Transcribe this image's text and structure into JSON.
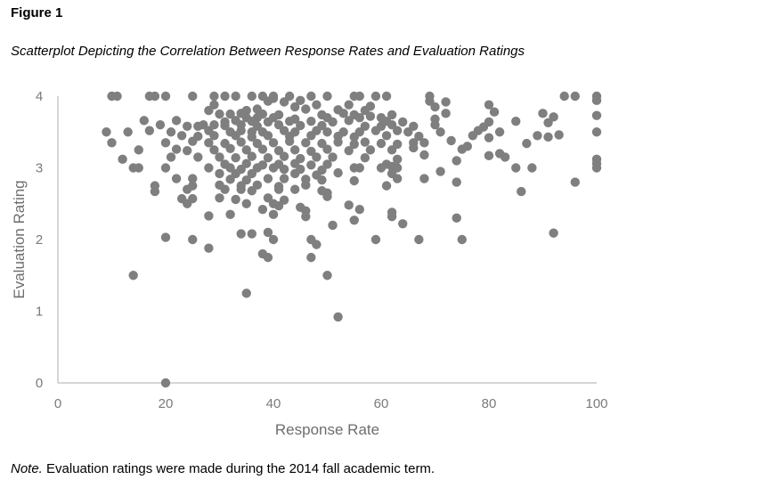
{
  "figure": {
    "label": "Figure 1",
    "title": "Scatterplot Depicting the Correlation Between Response Rates and Evaluation Ratings",
    "note_lead": "Note.",
    "note_text": " Evaluation ratings were made during the 2014 fall academic term."
  },
  "chart_data": {
    "type": "scatter",
    "title": "",
    "xlabel": "Response Rate",
    "ylabel": "Evaluation Rating",
    "xlim": [
      0,
      100
    ],
    "ylim": [
      0,
      4
    ],
    "xticks": [
      0,
      20,
      40,
      60,
      80,
      100
    ],
    "yticks": [
      0,
      1,
      2,
      3,
      4
    ],
    "grid": false,
    "legend": "none",
    "point_color": "#7f7f7f",
    "axis_color": "#c8c8c8",
    "points": [
      [
        10,
        4
      ],
      [
        11,
        4
      ],
      [
        17,
        4
      ],
      [
        18,
        4
      ],
      [
        20,
        4
      ],
      [
        25,
        4
      ],
      [
        29,
        4
      ],
      [
        31,
        4
      ],
      [
        33,
        4
      ],
      [
        36,
        4
      ],
      [
        38,
        4
      ],
      [
        40,
        4
      ],
      [
        43,
        4
      ],
      [
        47,
        4
      ],
      [
        50,
        4
      ],
      [
        55,
        4
      ],
      [
        56,
        4
      ],
      [
        59,
        4
      ],
      [
        61,
        4
      ],
      [
        69,
        4
      ],
      [
        94,
        4
      ],
      [
        96,
        4
      ],
      [
        100,
        4
      ],
      [
        40,
        3.97
      ],
      [
        39,
        3.93
      ],
      [
        42,
        3.92
      ],
      [
        45,
        3.94
      ],
      [
        69,
        3.93
      ],
      [
        72,
        3.92
      ],
      [
        100,
        3.94
      ],
      [
        29,
        3.88
      ],
      [
        48,
        3.88
      ],
      [
        54,
        3.88
      ],
      [
        80,
        3.88
      ],
      [
        44,
        3.85
      ],
      [
        58,
        3.86
      ],
      [
        70,
        3.85
      ],
      [
        28,
        3.8
      ],
      [
        35,
        3.8
      ],
      [
        37,
        3.82
      ],
      [
        46,
        3.82
      ],
      [
        52,
        3.81
      ],
      [
        57,
        3.8
      ],
      [
        81,
        3.78
      ],
      [
        30,
        3.75
      ],
      [
        32,
        3.75
      ],
      [
        34,
        3.76
      ],
      [
        38,
        3.75
      ],
      [
        41,
        3.74
      ],
      [
        49,
        3.74
      ],
      [
        53,
        3.76
      ],
      [
        55,
        3.74
      ],
      [
        62,
        3.74
      ],
      [
        72,
        3.76
      ],
      [
        90,
        3.76
      ],
      [
        100,
        3.73
      ],
      [
        35,
        3.7
      ],
      [
        37,
        3.7
      ],
      [
        40,
        3.7
      ],
      [
        44,
        3.68
      ],
      [
        50,
        3.7
      ],
      [
        56,
        3.7
      ],
      [
        58,
        3.72
      ],
      [
        60,
        3.7
      ],
      [
        70,
        3.68
      ],
      [
        92,
        3.71
      ],
      [
        16,
        3.66
      ],
      [
        22,
        3.66
      ],
      [
        31,
        3.64
      ],
      [
        33,
        3.66
      ],
      [
        36,
        3.65
      ],
      [
        39,
        3.64
      ],
      [
        43,
        3.65
      ],
      [
        47,
        3.65
      ],
      [
        51,
        3.64
      ],
      [
        54,
        3.66
      ],
      [
        61,
        3.65
      ],
      [
        64,
        3.64
      ],
      [
        80,
        3.64
      ],
      [
        85,
        3.65
      ],
      [
        91,
        3.63
      ],
      [
        19,
        3.6
      ],
      [
        24,
        3.58
      ],
      [
        26,
        3.58
      ],
      [
        27,
        3.6
      ],
      [
        29,
        3.6
      ],
      [
        31,
        3.59
      ],
      [
        34,
        3.6
      ],
      [
        37,
        3.58
      ],
      [
        41,
        3.6
      ],
      [
        45,
        3.59
      ],
      [
        49,
        3.59
      ],
      [
        57,
        3.58
      ],
      [
        60,
        3.58
      ],
      [
        62,
        3.6
      ],
      [
        66,
        3.58
      ],
      [
        70,
        3.6
      ],
      [
        79,
        3.57
      ],
      [
        9,
        3.5
      ],
      [
        13,
        3.5
      ],
      [
        17,
        3.52
      ],
      [
        21,
        3.5
      ],
      [
        28,
        3.52
      ],
      [
        32,
        3.5
      ],
      [
        34,
        3.52
      ],
      [
        36,
        3.5
      ],
      [
        38,
        3.5
      ],
      [
        42,
        3.52
      ],
      [
        44,
        3.5
      ],
      [
        48,
        3.52
      ],
      [
        50,
        3.5
      ],
      [
        53,
        3.5
      ],
      [
        56,
        3.5
      ],
      [
        59,
        3.52
      ],
      [
        63,
        3.52
      ],
      [
        65,
        3.5
      ],
      [
        71,
        3.5
      ],
      [
        78,
        3.52
      ],
      [
        82,
        3.5
      ],
      [
        93,
        3.46
      ],
      [
        100,
        3.5
      ],
      [
        23,
        3.45
      ],
      [
        26,
        3.44
      ],
      [
        29,
        3.45
      ],
      [
        33,
        3.45
      ],
      [
        36,
        3.43
      ],
      [
        39,
        3.45
      ],
      [
        43,
        3.44
      ],
      [
        47,
        3.45
      ],
      [
        52,
        3.44
      ],
      [
        55,
        3.43
      ],
      [
        61,
        3.45
      ],
      [
        67,
        3.44
      ],
      [
        77,
        3.45
      ],
      [
        80,
        3.42
      ],
      [
        89,
        3.45
      ],
      [
        91,
        3.43
      ],
      [
        10,
        3.35
      ],
      [
        20,
        3.35
      ],
      [
        25,
        3.37
      ],
      [
        28,
        3.35
      ],
      [
        31,
        3.34
      ],
      [
        34,
        3.36
      ],
      [
        37,
        3.34
      ],
      [
        40,
        3.35
      ],
      [
        43,
        3.37
      ],
      [
        46,
        3.35
      ],
      [
        49,
        3.34
      ],
      [
        52,
        3.36
      ],
      [
        55,
        3.33
      ],
      [
        57,
        3.36
      ],
      [
        60,
        3.34
      ],
      [
        63,
        3.33
      ],
      [
        66,
        3.35
      ],
      [
        68,
        3.35
      ],
      [
        73,
        3.38
      ],
      [
        76,
        3.3
      ],
      [
        87,
        3.34
      ],
      [
        15,
        3.25
      ],
      [
        22,
        3.26
      ],
      [
        24,
        3.24
      ],
      [
        29,
        3.25
      ],
      [
        32,
        3.27
      ],
      [
        35,
        3.25
      ],
      [
        38,
        3.26
      ],
      [
        41,
        3.24
      ],
      [
        44,
        3.25
      ],
      [
        47,
        3.23
      ],
      [
        50,
        3.26
      ],
      [
        54,
        3.24
      ],
      [
        58,
        3.25
      ],
      [
        62,
        3.25
      ],
      [
        66,
        3.28
      ],
      [
        75,
        3.26
      ],
      [
        82,
        3.2
      ],
      [
        12,
        3.12
      ],
      [
        21,
        3.15
      ],
      [
        26,
        3.15
      ],
      [
        30,
        3.15
      ],
      [
        33,
        3.14
      ],
      [
        36,
        3.16
      ],
      [
        39,
        3.14
      ],
      [
        42,
        3.16
      ],
      [
        45,
        3.13
      ],
      [
        48,
        3.15
      ],
      [
        51,
        3.15
      ],
      [
        57,
        3.14
      ],
      [
        63,
        3.12
      ],
      [
        68,
        3.18
      ],
      [
        74,
        3.1
      ],
      [
        80,
        3.17
      ],
      [
        83,
        3.15
      ],
      [
        100,
        3.12
      ],
      [
        31,
        3.05
      ],
      [
        35,
        3.06
      ],
      [
        38,
        3.04
      ],
      [
        41,
        3.05
      ],
      [
        44,
        3.06
      ],
      [
        47,
        3.04
      ],
      [
        50,
        3.05
      ],
      [
        61,
        3.05
      ],
      [
        62,
        3.02
      ],
      [
        100,
        3.06
      ],
      [
        14,
        3
      ],
      [
        15,
        3
      ],
      [
        20,
        3
      ],
      [
        28,
        3
      ],
      [
        32,
        3
      ],
      [
        34,
        2.98
      ],
      [
        37,
        3
      ],
      [
        40,
        3
      ],
      [
        42,
        2.98
      ],
      [
        45,
        2.98
      ],
      [
        49,
        2.97
      ],
      [
        55,
        3
      ],
      [
        56,
        3
      ],
      [
        60,
        3
      ],
      [
        63,
        3
      ],
      [
        71,
        2.95
      ],
      [
        85,
        3
      ],
      [
        88,
        3
      ],
      [
        100,
        3
      ],
      [
        30,
        2.92
      ],
      [
        33,
        2.92
      ],
      [
        36,
        2.92
      ],
      [
        44,
        2.92
      ],
      [
        48,
        2.9
      ],
      [
        52,
        2.93
      ],
      [
        62,
        2.92
      ],
      [
        22,
        2.85
      ],
      [
        25,
        2.85
      ],
      [
        32,
        2.84
      ],
      [
        35,
        2.83
      ],
      [
        39,
        2.85
      ],
      [
        42,
        2.85
      ],
      [
        46,
        2.84
      ],
      [
        49,
        2.83
      ],
      [
        55,
        2.82
      ],
      [
        63,
        2.85
      ],
      [
        68,
        2.85
      ],
      [
        74,
        2.8
      ],
      [
        96,
        2.8
      ],
      [
        18,
        2.75
      ],
      [
        25,
        2.75
      ],
      [
        30,
        2.76
      ],
      [
        34,
        2.75
      ],
      [
        37,
        2.76
      ],
      [
        41,
        2.74
      ],
      [
        46,
        2.76
      ],
      [
        61,
        2.75
      ],
      [
        18,
        2.67
      ],
      [
        24,
        2.7
      ],
      [
        31,
        2.7
      ],
      [
        34,
        2.7
      ],
      [
        36,
        2.68
      ],
      [
        41,
        2.7
      ],
      [
        44,
        2.7
      ],
      [
        49,
        2.68
      ],
      [
        50,
        2.65
      ],
      [
        86,
        2.67
      ],
      [
        23,
        2.57
      ],
      [
        25,
        2.57
      ],
      [
        30,
        2.58
      ],
      [
        33,
        2.56
      ],
      [
        39,
        2.58
      ],
      [
        42,
        2.55
      ],
      [
        50,
        2.6
      ],
      [
        24,
        2.5
      ],
      [
        35,
        2.5
      ],
      [
        40,
        2.5
      ],
      [
        41,
        2.47
      ],
      [
        45,
        2.45
      ],
      [
        54,
        2.48
      ],
      [
        38,
        2.42
      ],
      [
        46,
        2.4
      ],
      [
        56,
        2.42
      ],
      [
        62,
        2.38
      ],
      [
        28,
        2.33
      ],
      [
        32,
        2.35
      ],
      [
        40,
        2.35
      ],
      [
        46,
        2.32
      ],
      [
        62,
        2.32
      ],
      [
        74,
        2.3
      ],
      [
        55,
        2.27
      ],
      [
        64,
        2.22
      ],
      [
        51,
        2.2
      ],
      [
        34,
        2.08
      ],
      [
        36,
        2.08
      ],
      [
        39,
        2.1
      ],
      [
        20,
        2.03
      ],
      [
        25,
        2
      ],
      [
        40,
        2
      ],
      [
        47,
        2
      ],
      [
        59,
        2
      ],
      [
        67,
        2
      ],
      [
        75,
        2
      ],
      [
        92,
        2.09
      ],
      [
        48,
        1.93
      ],
      [
        28,
        1.88
      ],
      [
        38,
        1.8
      ],
      [
        39,
        1.75
      ],
      [
        47,
        1.75
      ],
      [
        14,
        1.5
      ],
      [
        50,
        1.5
      ],
      [
        35,
        1.25
      ],
      [
        52,
        0.92
      ],
      [
        20,
        0
      ]
    ]
  }
}
